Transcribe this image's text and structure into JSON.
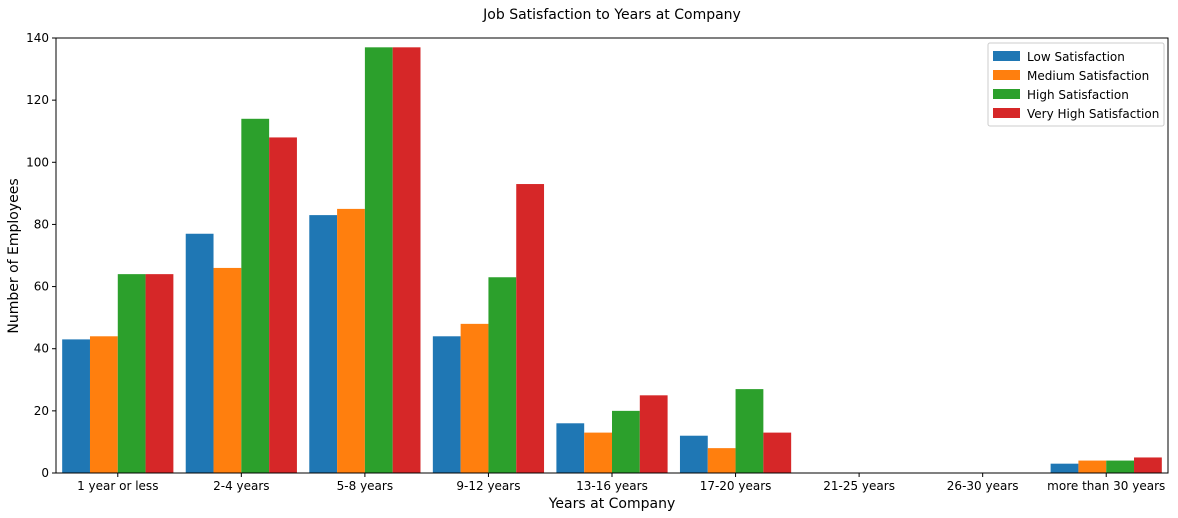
{
  "chart_data": {
    "type": "bar",
    "title": "Job Satisfaction to Years at Company",
    "xlabel": "Years at Company",
    "ylabel": "Number of Employees",
    "ylim": [
      0,
      140
    ],
    "yticks": [
      0,
      20,
      40,
      60,
      80,
      100,
      120,
      140
    ],
    "legend_position": "top-right",
    "categories": [
      "1 year or less",
      "2-4 years",
      "5-8 years",
      "9-12 years",
      "13-16 years",
      "17-20 years",
      "21-25 years",
      "26-30 years",
      "more than 30 years"
    ],
    "series": [
      {
        "name": "Low Satisfaction",
        "color": "#1f77b4",
        "values": [
          43,
          77,
          83,
          44,
          16,
          12,
          0,
          0,
          3
        ]
      },
      {
        "name": "Medium Satisfaction",
        "color": "#ff7f0e",
        "values": [
          44,
          66,
          85,
          48,
          13,
          8,
          0,
          0,
          4
        ]
      },
      {
        "name": "High Satisfaction",
        "color": "#2ca02c",
        "values": [
          64,
          114,
          137,
          63,
          20,
          27,
          0,
          0,
          4
        ]
      },
      {
        "name": "Very High Satisfaction",
        "color": "#d62728",
        "values": [
          64,
          108,
          137,
          93,
          25,
          13,
          0,
          0,
          5
        ]
      }
    ]
  }
}
